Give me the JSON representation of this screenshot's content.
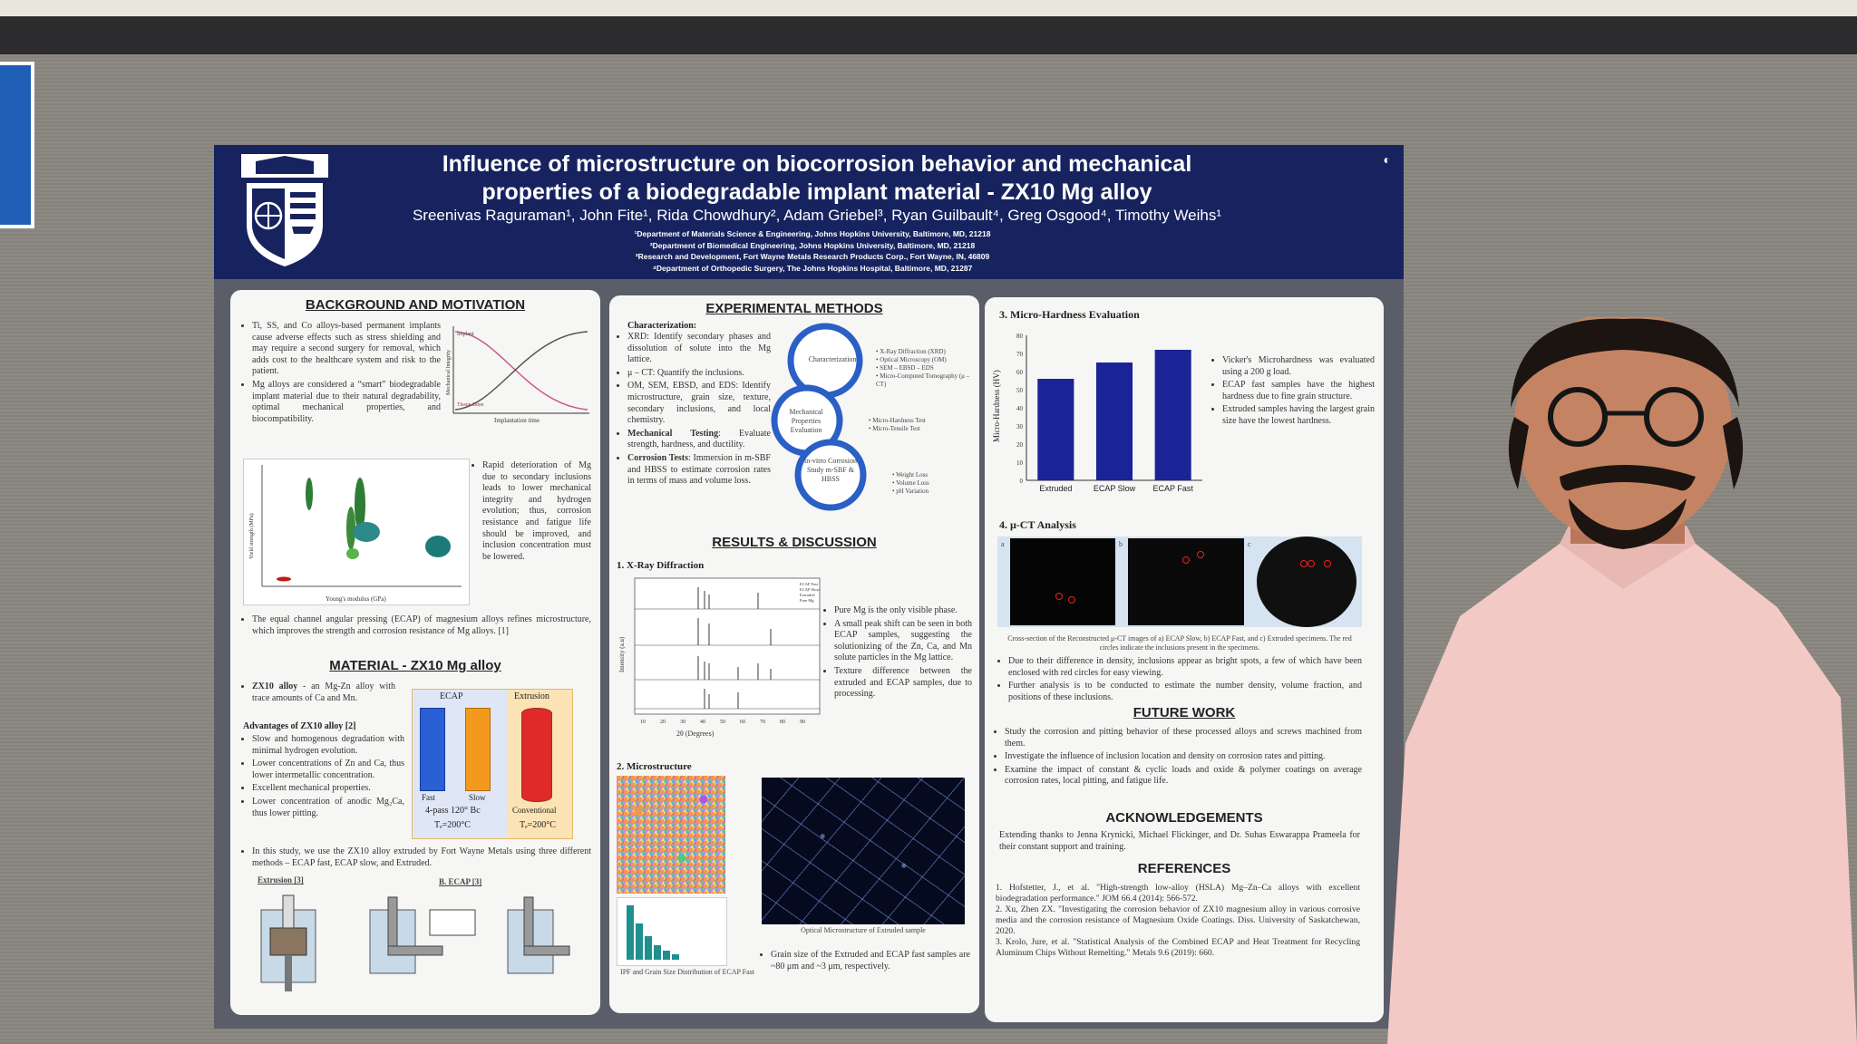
{
  "header": {
    "title_line1": "Influence of microstructure on biocorrosion behavior and mechanical",
    "title_line2": "properties of a biodegradable implant material - ZX10 Mg alloy",
    "authors": "Sreenivas Raguraman¹, John Fite¹, Rida Chowdhury², Adam Griebel³, Ryan Guilbault⁴, Greg Osgood⁴, Timothy Weihs¹",
    "affiliations": [
      "¹Department of Materials Science & Engineering, Johns Hopkins University, Baltimore, MD, 21218",
      "²Department of Biomedical Engineering, Johns Hopkins University, Baltimore, MD, 21218",
      "³Research and Development, Fort Wayne Metals Research Products Corp., Fort Wayne, IN, 46809",
      "⁴Department of Orthopedic Surgery, The Johns Hopkins Hospital, Baltimore, MD, 21287"
    ]
  },
  "background": {
    "title": "BACKGROUND AND MOTIVATION",
    "b1": "Ti, SS, and Co alloys-based permanent implants cause adverse effects such as stress shielding and may require a second surgery for removal, which adds cost to the healthcare system and risk to the patient.",
    "b2": "Mg alloys are considered a “smart” biodegradable implant material due to their natural degradability, optimal mechanical properties, and biocompatibility.",
    "b3": "Rapid deterioration of Mg due to secondary inclusions leads to lower mechanical integrity and hydrogen evolution; thus, corrosion resistance and fatigue life should be improved, and inclusion concentration must be lowered.",
    "b4": "The equal channel angular pressing (ECAP) of magnesium alloys refines microstructure, which improves the strength and corrosion resistance of Mg alloys. [1]",
    "fig_xlabel": "Implantation time",
    "fig_ylabel": "Mechanical Integrity",
    "fig_implant": "Implant",
    "fig_tissue": "Tissue Bone",
    "scatter_xlabel": "Young's modulus (GPa)",
    "scatter_ylabel": "Yield strength (MPa)"
  },
  "material": {
    "title": "MATERIAL - ZX10 Mg alloy",
    "intro_bold": "ZX10 alloy",
    "intro": " - an Mg-Zn alloy with trace amounts of Ca and Mn.",
    "adv_title": "Advantages of ZX10 alloy [2]",
    "adv": [
      "Slow and homogenous degradation with minimal hydrogen evolution.",
      "Lower concentrations of Zn and Ca, thus lower intermetallic concentration.",
      "Excellent mechanical properties.",
      "Lower concentration of anodic Mg₂Ca, thus lower pitting."
    ],
    "study": "In this study, we use the ZX10 alloy extruded by Fort Wayne Metals using three different methods – ECAP fast, ECAP slow, and Extruded.",
    "ecap_label": "ECAP",
    "extrusion_label": "Extrusion",
    "fast": "Fast",
    "slow": "Slow",
    "conventional": "Conventional",
    "ecap_cond": "4-pass 120° Bc",
    "ecap_temp": "Tₑ=200°C",
    "ext_temp": "Tₑ=200°C",
    "extrusion_fig": "Extrusion [3]",
    "ecap_fig": "B. ECAP [3]"
  },
  "methods": {
    "title": "EXPERIMENTAL METHODS",
    "char_title": "Characterization:",
    "xrd": "XRD: Identify secondary phases and dissolution of solute into the Mg lattice.",
    "uct": "μ – CT: Quantify the inclusions.",
    "om": "OM, SEM, EBSD, and EDS: Identify microstructure, grain size, texture, secondary inclusions, and local chemistry.",
    "mech_bold": "Mechanical Testing",
    "mech": ": Evaluate strength, hardness, and ductility.",
    "corr_bold": "Corrosion Tests",
    "corr": ": Immersion in m-SBF and HBSS to estimate corrosion rates in terms of mass and volume loss.",
    "cycle": [
      "Characterization",
      "Mechanical Properties Evaluation",
      "in-vitro Corrosion Study m-SBF & HBSS"
    ],
    "cycle_notes1": [
      "• X-Ray Diffraction (XRD)",
      "• Optical Microscopy (OM)",
      "• SEM – EBSD – EDS",
      "• Micro-Computed Tomography (μ – CT)"
    ],
    "cycle_notes2": [
      "• Micro-Hardness Test",
      "• Micro-Tensile Test"
    ],
    "cycle_notes3": [
      "• Weight Loss",
      "• Volume Loss",
      "• pH Variation"
    ]
  },
  "results": {
    "title": "RESULTS & DISCUSSION",
    "xrd_title": "1.  X-Ray Diffraction",
    "xrd_xlabel": "2θ (Degrees)",
    "xrd_ylabel": "Intensity (a.u)",
    "xrd_ticks": [
      "10",
      "20",
      "30",
      "40",
      "50",
      "60",
      "70",
      "80",
      "90"
    ],
    "xrd_legend": [
      "ECAP Fast",
      "ECAP Slow",
      "Extruded",
      "Pure Mg"
    ],
    "xrd_bullets": [
      "Pure Mg is the only visible phase.",
      "A small peak shift can be seen in both ECAP samples, suggesting the solutionizing of the Zn, Ca, and Mn solute particles in the Mg lattice.",
      "Texture difference between the extruded and ECAP samples, due to processing."
    ],
    "micro_title": "2.  Microstructure",
    "ipf_caption": "IPF and Grain Size Distribution of ECAP Fast",
    "om_caption": "Optical Microstructure of Extruded sample",
    "grain": "Grain size of the Extruded and ECAP fast samples are ~80 μm and ~3 μm, respectively."
  },
  "hardness": {
    "title": "3. Micro-Hardness Evaluation",
    "ylabel": "Micro-Hardness (HV)",
    "bullets": [
      "Vicker's Microhardness was evaluated using a 200 g load.",
      "ECAP fast samples have the highest hardness due to fine grain structure.",
      "Extruded samples having the largest grain size have the lowest hardness."
    ]
  },
  "chart_data": {
    "type": "bar",
    "categories": [
      "Extruded",
      "ECAP Slow",
      "ECAP Fast"
    ],
    "values": [
      56,
      65,
      72
    ],
    "ylabel": "Micro-Hardness (HV)",
    "ylim": [
      0,
      80
    ],
    "yticks": [
      0,
      10,
      20,
      30,
      40,
      50,
      60,
      70,
      80
    ],
    "color": "#1a2496",
    "grid": false
  },
  "uct": {
    "title": "4. μ-CT Analysis",
    "labels": [
      "a",
      "b",
      "c"
    ],
    "caption": "Cross-section of the Reconstructed μ-CT images of a) ECAP Slow, b) ECAP Fast, and c) Extruded specimens. The red circles indicate the inclusions present in the specimens.",
    "bullets": [
      "Due to their difference in density, inclusions appear as bright spots, a few of which have been enclosed with red circles for easy viewing.",
      "Further analysis is to be conducted to estimate the number density, volume fraction, and positions of these inclusions."
    ]
  },
  "future": {
    "title": "FUTURE WORK",
    "items": [
      "Study the corrosion and pitting behavior of these processed alloys and screws machined from them.",
      "Investigate the influence of inclusion location and density on corrosion rates and pitting.",
      "Examine the impact of constant & cyclic loads and oxide & polymer coatings on average corrosion rates, local pitting, and fatigue life."
    ]
  },
  "ack": {
    "title": "ACKNOWLEDGEMENTS",
    "text": "Extending thanks to Jenna Krynicki, Michael Flickinger, and Dr. Suhas Eswarappa Prameela for their constant support and training."
  },
  "refs": {
    "title": "REFERENCES",
    "items": [
      "1. Hofstetter, J., et al. \"High-strength low-alloy (HSLA) Mg–Zn–Ca alloys with excellent biodegradation performance.\" JOM 66.4 (2014): 566-572.",
      "2. Xu, Zhen ZX. \"Investigating the corrosion behavior of ZX10 magnesium alloy in various corrosive media and the corrosion resistance of Magnesium Oxide Coatings. Diss. University of Saskatchewan, 2020.",
      "3. Krolo, Jure, et al. \"Statistical Analysis of the Combined ECAP and Heat Treatment for Recycling Aluminum Chips Without Remelting.\" Metals 9.6 (2019): 660."
    ]
  },
  "colors": {
    "header": "#17235f",
    "bar": "#1a2496",
    "ecap_fast": "#2b5fd6",
    "ecap_slow": "#f39a1e",
    "extrusion": "#e02a2a"
  }
}
